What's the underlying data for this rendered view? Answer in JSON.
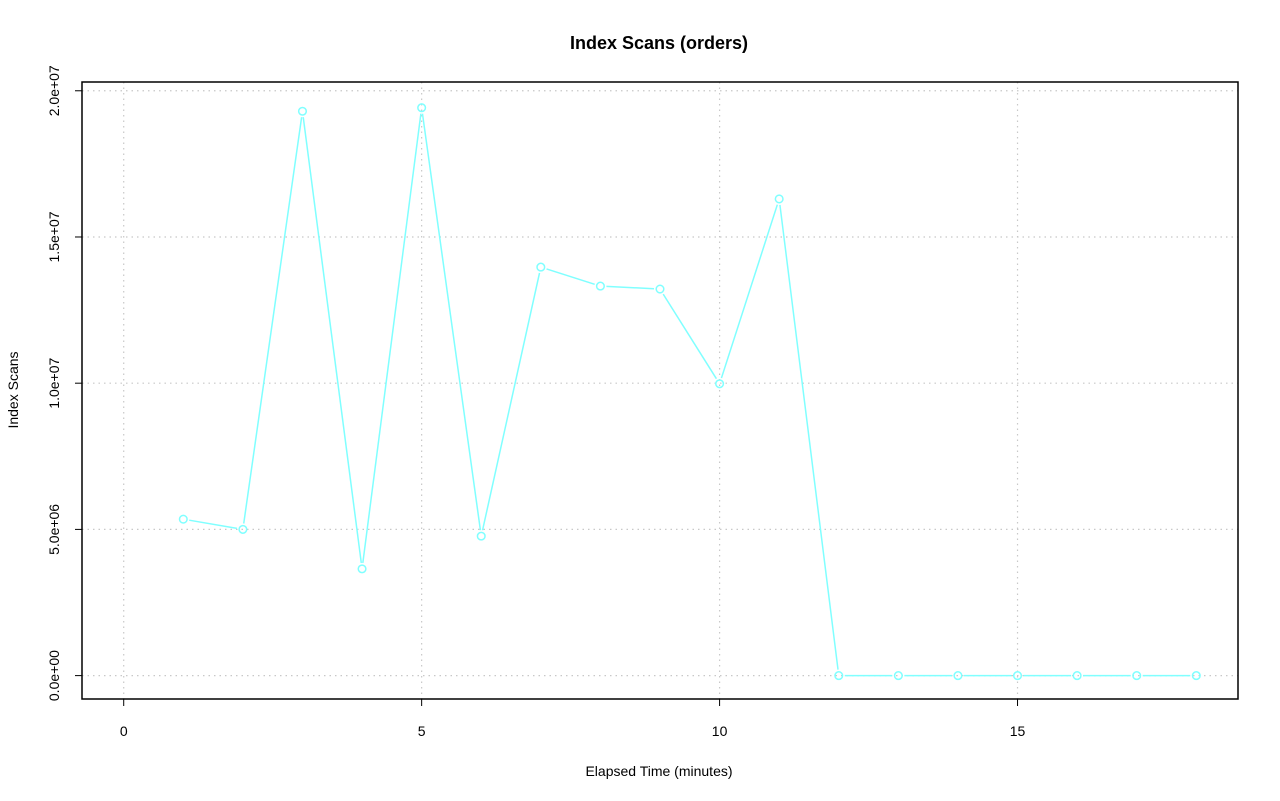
{
  "chart_data": {
    "type": "line",
    "title": "Index Scans (orders)",
    "xlabel": "Elapsed Time (minutes)",
    "ylabel": "Index Scans",
    "xlim": [
      -0.7,
      18.7
    ],
    "ylim": [
      -800000,
      20300000
    ],
    "x_ticks": [
      0,
      5,
      10,
      15
    ],
    "x_tick_labels": [
      "0",
      "5",
      "10",
      "15"
    ],
    "y_ticks": [
      0,
      5000000,
      10000000,
      15000000,
      20000000
    ],
    "y_tick_labels": [
      "0.0e+00",
      "5.0e+06",
      "1.0e+07",
      "1.5e+07",
      "2.0e+07"
    ],
    "grid": true,
    "series": [
      {
        "color": "#80ffff",
        "x": [
          1,
          2,
          3,
          4,
          5,
          6,
          7,
          8,
          9,
          10,
          11,
          12,
          13,
          14,
          15,
          16,
          17,
          18
        ],
        "y": [
          5350000,
          5000000,
          19300000,
          3650000,
          19420000,
          4770000,
          13970000,
          13320000,
          13220000,
          9980000,
          16300000,
          0,
          0,
          0,
          0,
          0,
          0,
          0
        ]
      }
    ]
  }
}
